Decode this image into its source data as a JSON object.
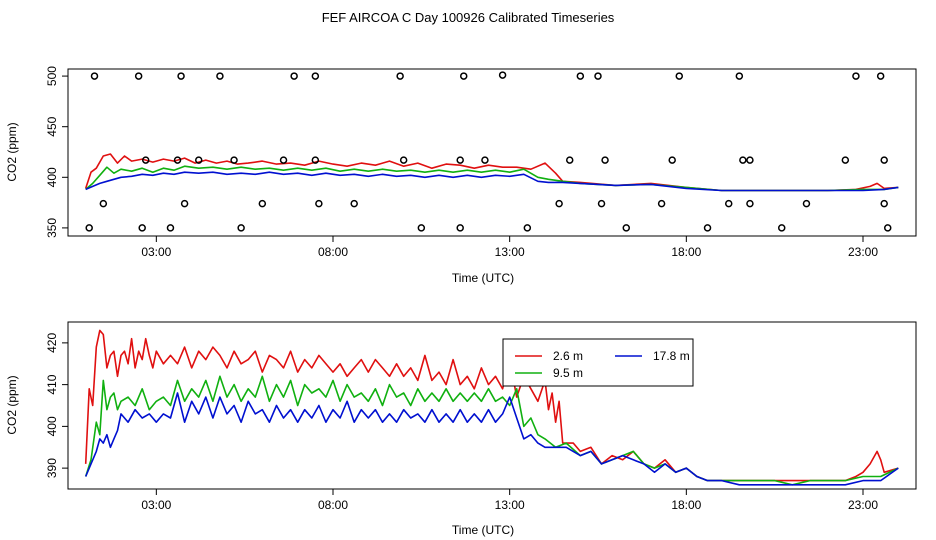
{
  "chart_title": "FEF AIRCOA C  Day 100926  Calibrated Timeseries",
  "colors": {
    "red": "#e01010",
    "green": "#10b010",
    "blue": "#0010d0",
    "axis": "#000000"
  },
  "chart_data": [
    {
      "type": "scatter+line",
      "panel": "top",
      "xlabel": "Time (UTC)",
      "ylabel": "CO2 (ppm)",
      "xlim": [
        0.5,
        24.5
      ],
      "ylim": [
        342,
        507
      ],
      "xticks": [
        3,
        8,
        13,
        18,
        23
      ],
      "xtick_labels": [
        "03:00",
        "08:00",
        "13:00",
        "18:00",
        "23:00"
      ],
      "yticks": [
        350,
        400,
        450,
        500
      ],
      "ytick_labels": [
        "350",
        "400",
        "450",
        "500"
      ],
      "markers": {
        "x": [
          1.25,
          2.5,
          3.7,
          4.8,
          6.9,
          7.5,
          9.9,
          11.7,
          12.8,
          15.0,
          15.5,
          17.8,
          19.5,
          22.8,
          23.5,
          1.1,
          1.5,
          2.6,
          3.4,
          3.8,
          5.4,
          6.0,
          7.6,
          8.6,
          10.5,
          11.6,
          13.5,
          14.4,
          15.6,
          16.3,
          17.3,
          18.6,
          19.2,
          19.8,
          20.7,
          21.4,
          23.6,
          23.7,
          2.7,
          3.6,
          4.2,
          5.2,
          6.6,
          7.5,
          10.0,
          11.6,
          12.3,
          14.7,
          15.7,
          17.6,
          19.6,
          19.8,
          22.5,
          23.6
        ],
        "y": [
          500,
          500,
          500,
          500,
          500,
          500,
          500,
          500,
          501,
          500,
          500,
          500,
          500,
          500,
          500,
          350,
          374,
          350,
          350,
          374,
          350,
          374,
          374,
          374,
          350,
          350,
          350,
          374,
          374,
          350,
          374,
          350,
          374,
          374,
          350,
          374,
          374,
          350,
          417,
          417,
          417,
          417,
          417,
          417,
          417,
          417,
          417,
          417,
          417,
          417,
          417,
          417,
          417,
          417
        ]
      },
      "series": [
        {
          "name": "2.6 m",
          "color": "#e01010",
          "x": [
            1.0,
            1.15,
            1.3,
            1.5,
            1.7,
            1.9,
            2.1,
            2.3,
            2.6,
            2.9,
            3.2,
            3.5,
            3.8,
            4.1,
            4.4,
            4.7,
            5.0,
            5.3,
            5.6,
            6.0,
            6.4,
            6.8,
            7.2,
            7.6,
            8.0,
            8.4,
            8.8,
            9.2,
            9.6,
            10.0,
            10.4,
            10.8,
            11.2,
            11.6,
            12.0,
            12.4,
            12.8,
            13.2,
            13.6,
            14.0,
            14.3,
            14.5,
            15.0,
            16.0,
            17.0,
            18.0,
            19.0,
            20.0,
            21.0,
            22.0,
            22.8,
            23.2,
            23.4,
            23.6,
            24.0
          ],
          "y": [
            389,
            405,
            409,
            421,
            423,
            414,
            421,
            416,
            418,
            415,
            418,
            416,
            419,
            414,
            417,
            414,
            416,
            413,
            414,
            416,
            413,
            414,
            412,
            416,
            413,
            411,
            414,
            412,
            416,
            411,
            414,
            409,
            413,
            412,
            409,
            412,
            410,
            410,
            408,
            414,
            404,
            396,
            395,
            392,
            394,
            390,
            387,
            387,
            387,
            387,
            388,
            391,
            394,
            389,
            390
          ]
        },
        {
          "name": "9.5 m",
          "color": "#10b010",
          "x": [
            1.0,
            1.2,
            1.4,
            1.6,
            1.8,
            2.0,
            2.3,
            2.6,
            2.9,
            3.2,
            3.5,
            3.8,
            4.2,
            4.6,
            5.0,
            5.4,
            5.8,
            6.2,
            6.6,
            7.0,
            7.4,
            7.8,
            8.2,
            8.6,
            9.0,
            9.4,
            9.8,
            10.2,
            10.6,
            11.0,
            11.4,
            11.8,
            12.2,
            12.6,
            13.0,
            13.4,
            13.8,
            14.1,
            14.5,
            15.0,
            16.0,
            17.0,
            18.0,
            19.0,
            20.0,
            21.0,
            22.0,
            23.0,
            23.6,
            24.0
          ],
          "y": [
            388,
            394,
            402,
            410,
            404,
            408,
            406,
            409,
            405,
            409,
            407,
            411,
            409,
            410,
            408,
            410,
            408,
            409,
            407,
            409,
            407,
            409,
            406,
            408,
            406,
            408,
            406,
            407,
            405,
            407,
            405,
            407,
            405,
            407,
            405,
            408,
            400,
            398,
            396,
            394,
            392,
            393,
            390,
            387,
            387,
            387,
            387,
            388,
            388,
            390
          ]
        },
        {
          "name": "17.8 m",
          "color": "#0010d0",
          "x": [
            1.0,
            1.2,
            1.4,
            1.6,
            1.8,
            2.0,
            2.3,
            2.6,
            2.9,
            3.2,
            3.5,
            3.8,
            4.2,
            4.6,
            5.0,
            5.4,
            5.8,
            6.2,
            6.6,
            7.0,
            7.4,
            7.8,
            8.2,
            8.6,
            9.0,
            9.4,
            9.8,
            10.2,
            10.6,
            11.0,
            11.4,
            11.8,
            12.2,
            12.6,
            13.0,
            13.4,
            13.8,
            14.1,
            14.5,
            15.0,
            16.0,
            17.0,
            18.0,
            19.0,
            20.0,
            21.0,
            22.0,
            23.0,
            23.6,
            24.0
          ],
          "y": [
            388,
            391,
            394,
            396,
            398,
            400,
            401,
            403,
            402,
            404,
            403,
            405,
            404,
            405,
            403,
            404,
            403,
            405,
            403,
            404,
            402,
            404,
            402,
            403,
            401,
            403,
            401,
            402,
            400,
            402,
            400,
            402,
            400,
            402,
            401,
            403,
            396,
            395,
            395,
            394,
            392,
            393,
            389,
            387,
            387,
            387,
            387,
            387,
            388,
            390
          ]
        }
      ]
    },
    {
      "type": "line",
      "panel": "bottom",
      "xlabel": "Time (UTC)",
      "ylabel": "CO2 (ppm)",
      "xlim": [
        0.5,
        24.5
      ],
      "ylim": [
        385,
        425
      ],
      "xticks": [
        3,
        8,
        13,
        18,
        23
      ],
      "xtick_labels": [
        "03:00",
        "08:00",
        "13:00",
        "18:00",
        "23:00"
      ],
      "yticks": [
        390,
        400,
        410,
        420
      ],
      "ytick_labels": [
        "390",
        "400",
        "410",
        "420"
      ],
      "legend": {
        "position": "top-right-center",
        "entries": [
          "2.6 m",
          "17.8 m",
          "9.5 m"
        ]
      },
      "series": [
        {
          "name": "2.6 m",
          "color": "#e01010",
          "x": [
            1.0,
            1.1,
            1.2,
            1.3,
            1.4,
            1.5,
            1.6,
            1.7,
            1.8,
            1.9,
            2.0,
            2.1,
            2.2,
            2.3,
            2.4,
            2.5,
            2.6,
            2.7,
            2.8,
            2.9,
            3.0,
            3.2,
            3.4,
            3.6,
            3.8,
            4.0,
            4.2,
            4.4,
            4.6,
            4.8,
            5.0,
            5.2,
            5.4,
            5.6,
            5.8,
            6.0,
            6.2,
            6.4,
            6.6,
            6.8,
            7.0,
            7.2,
            7.4,
            7.6,
            7.8,
            8.0,
            8.2,
            8.4,
            8.6,
            8.8,
            9.0,
            9.2,
            9.4,
            9.6,
            9.8,
            10.0,
            10.2,
            10.4,
            10.6,
            10.8,
            11.0,
            11.2,
            11.4,
            11.6,
            11.8,
            12.0,
            12.2,
            12.4,
            12.6,
            12.8,
            13.0,
            13.2,
            13.4,
            13.6,
            13.8,
            14.0,
            14.1,
            14.2,
            14.3,
            14.4,
            14.5,
            14.8,
            15.0,
            15.3,
            15.6,
            15.9,
            16.2,
            16.5,
            16.8,
            17.1,
            17.4,
            17.7,
            18.0,
            18.3,
            18.6,
            19.0,
            19.5,
            20.0,
            20.5,
            21.0,
            21.5,
            22.0,
            22.5,
            22.8,
            23.0,
            23.2,
            23.4,
            23.5,
            23.6,
            24.0
          ],
          "y": [
            391,
            409,
            405,
            419,
            423,
            422,
            414,
            417,
            418,
            412,
            417,
            418,
            415,
            421,
            414,
            418,
            416,
            421,
            417,
            414,
            418,
            415,
            417,
            415,
            419,
            414,
            418,
            416,
            419,
            417,
            414,
            418,
            415,
            416,
            418,
            413,
            417,
            416,
            414,
            418,
            413,
            416,
            414,
            417,
            415,
            413,
            415,
            412,
            414,
            416,
            413,
            416,
            414,
            412,
            415,
            412,
            414,
            411,
            417,
            411,
            413,
            410,
            416,
            410,
            412,
            409,
            414,
            410,
            412,
            409,
            416,
            407,
            412,
            409,
            406,
            411,
            404,
            408,
            401,
            406,
            396,
            396,
            394,
            395,
            391,
            393,
            392,
            394,
            391,
            390,
            392,
            389,
            390,
            388,
            387,
            387,
            387,
            387,
            387,
            387,
            387,
            387,
            387,
            388,
            389,
            391,
            394,
            392,
            389,
            390
          ]
        },
        {
          "name": "9.5 m",
          "color": "#10b010",
          "x": [
            1.0,
            1.15,
            1.3,
            1.4,
            1.5,
            1.6,
            1.7,
            1.8,
            1.9,
            2.0,
            2.2,
            2.4,
            2.6,
            2.8,
            3.0,
            3.2,
            3.4,
            3.6,
            3.8,
            4.0,
            4.2,
            4.4,
            4.6,
            4.8,
            5.0,
            5.2,
            5.4,
            5.6,
            5.8,
            6.0,
            6.2,
            6.4,
            6.6,
            6.8,
            7.0,
            7.2,
            7.4,
            7.6,
            7.8,
            8.0,
            8.2,
            8.4,
            8.6,
            8.8,
            9.0,
            9.2,
            9.4,
            9.6,
            9.8,
            10.0,
            10.2,
            10.4,
            10.6,
            10.8,
            11.0,
            11.2,
            11.4,
            11.6,
            11.8,
            12.0,
            12.2,
            12.4,
            12.6,
            12.8,
            13.0,
            13.2,
            13.4,
            13.6,
            13.8,
            14.0,
            14.3,
            14.6,
            15.0,
            15.3,
            15.6,
            15.9,
            16.2,
            16.5,
            16.8,
            17.1,
            17.4,
            17.7,
            18.0,
            18.3,
            18.6,
            19.0,
            19.5,
            20.0,
            20.5,
            21.0,
            21.5,
            22.0,
            22.5,
            23.0,
            23.5,
            24.0
          ],
          "y": [
            388,
            392,
            401,
            398,
            411,
            404,
            407,
            408,
            404,
            406,
            407,
            405,
            409,
            404,
            406,
            407,
            405,
            411,
            406,
            409,
            407,
            411,
            406,
            412,
            407,
            410,
            406,
            409,
            407,
            412,
            406,
            410,
            407,
            411,
            405,
            410,
            408,
            409,
            407,
            411,
            406,
            410,
            407,
            408,
            406,
            409,
            405,
            410,
            407,
            408,
            405,
            409,
            406,
            408,
            406,
            409,
            406,
            408,
            406,
            408,
            406,
            409,
            406,
            407,
            405,
            409,
            400,
            402,
            398,
            397,
            395,
            396,
            393,
            394,
            391,
            392,
            393,
            394,
            391,
            390,
            391,
            389,
            390,
            388,
            387,
            387,
            387,
            387,
            387,
            386,
            387,
            387,
            387,
            388,
            388,
            390
          ]
        },
        {
          "name": "17.8 m",
          "color": "#0010d0",
          "x": [
            1.0,
            1.15,
            1.3,
            1.4,
            1.5,
            1.6,
            1.7,
            1.8,
            1.9,
            2.0,
            2.2,
            2.4,
            2.6,
            2.8,
            3.0,
            3.2,
            3.4,
            3.6,
            3.8,
            4.0,
            4.2,
            4.4,
            4.6,
            4.8,
            5.0,
            5.2,
            5.4,
            5.6,
            5.8,
            6.0,
            6.2,
            6.4,
            6.6,
            6.8,
            7.0,
            7.2,
            7.4,
            7.6,
            7.8,
            8.0,
            8.2,
            8.4,
            8.6,
            8.8,
            9.0,
            9.2,
            9.4,
            9.6,
            9.8,
            10.0,
            10.2,
            10.4,
            10.6,
            10.8,
            11.0,
            11.2,
            11.4,
            11.6,
            11.8,
            12.0,
            12.2,
            12.4,
            12.6,
            12.8,
            13.0,
            13.2,
            13.4,
            13.6,
            13.8,
            14.0,
            14.3,
            14.6,
            15.0,
            15.3,
            15.6,
            15.9,
            16.2,
            16.5,
            16.8,
            17.1,
            17.4,
            17.7,
            18.0,
            18.3,
            18.6,
            19.0,
            19.5,
            20.0,
            20.5,
            21.0,
            21.5,
            22.0,
            22.5,
            23.0,
            23.5,
            24.0
          ],
          "y": [
            388,
            391,
            394,
            397,
            396,
            398,
            395,
            397,
            399,
            403,
            401,
            404,
            402,
            403,
            401,
            403,
            402,
            408,
            401,
            406,
            403,
            407,
            402,
            407,
            403,
            405,
            401,
            406,
            403,
            404,
            401,
            405,
            402,
            404,
            401,
            404,
            402,
            405,
            401,
            404,
            402,
            406,
            401,
            404,
            402,
            404,
            401,
            403,
            401,
            404,
            402,
            403,
            401,
            404,
            401,
            403,
            401,
            404,
            401,
            403,
            401,
            404,
            401,
            403,
            407,
            402,
            397,
            398,
            396,
            395,
            395,
            395,
            393,
            394,
            391,
            392,
            393,
            392,
            391,
            389,
            391,
            389,
            390,
            388,
            387,
            387,
            386,
            386,
            386,
            386,
            386,
            386,
            386,
            387,
            387,
            390
          ]
        }
      ]
    }
  ]
}
